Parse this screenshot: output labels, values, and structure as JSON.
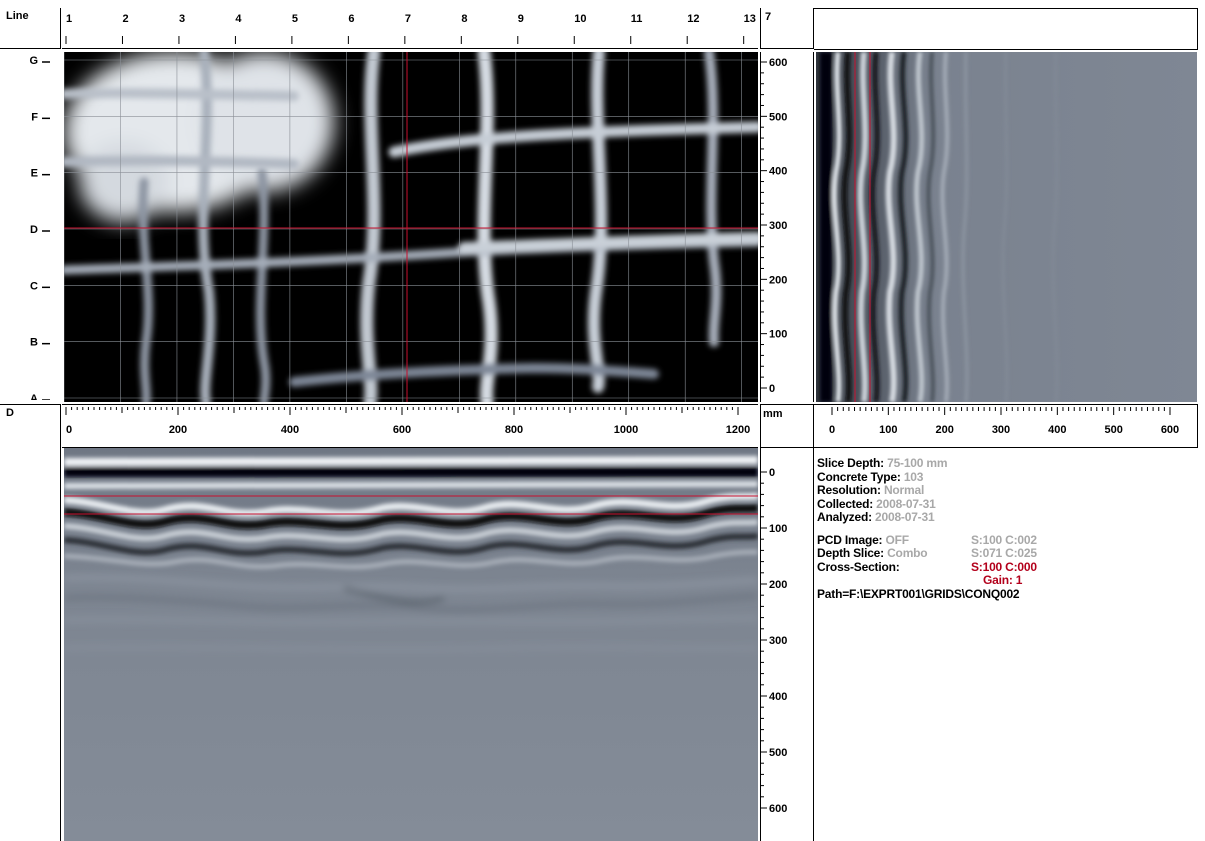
{
  "header": {
    "line_label": "Line",
    "line_numbers": [
      "1",
      "2",
      "3",
      "4",
      "5",
      "6",
      "7",
      "8",
      "9",
      "10",
      "11",
      "12",
      "13"
    ],
    "selected_line": "7",
    "d_label": "D",
    "mm_label": "mm"
  },
  "rows": [
    "G",
    "F",
    "E",
    "D",
    "C",
    "B",
    "A"
  ],
  "depth_scale_top": [
    "600",
    "500",
    "400",
    "300",
    "200",
    "100",
    "0"
  ],
  "x_scale": [
    "0",
    "200",
    "400",
    "600",
    "800",
    "1000",
    "1200"
  ],
  "side_scale": [
    "0",
    "100",
    "200",
    "300",
    "400",
    "500",
    "600"
  ],
  "depth_scale_bottom": [
    "0",
    "100",
    "200",
    "300",
    "400",
    "500",
    "600"
  ],
  "info": {
    "slice_depth_label": "Slice Depth:",
    "slice_depth_value": "75-100 mm",
    "concrete_type_label": "Concrete Type:",
    "concrete_type_value": "103",
    "resolution_label": "Resolution:",
    "resolution_value": "Normal",
    "collected_label": "Collected:",
    "collected_value": "2008-07-31",
    "analyzed_label": "Analyzed:",
    "analyzed_value": "2008-07-31",
    "pcd_label": "PCD Image:",
    "pcd_value": "OFF",
    "pcd_sc": "S:100 C:002",
    "depth_slice_label": "Depth Slice:",
    "depth_slice_value": "Combo",
    "depth_slice_sc": "S:071 C:025",
    "cross_section_label": "Cross-Section:",
    "cross_section_sc": "S:100 C:000",
    "gain": "Gain: 1",
    "path": "Path=F:\\EXPRT001\\GRIDS\\CONQ002"
  },
  "colors": {
    "background": "#ffffff",
    "scan_dark": "#000000",
    "scan_gray": "#7b8390",
    "rebar": "#e6eaef",
    "cursor": "#c8102e",
    "value_gray": "#a8a8a8"
  }
}
